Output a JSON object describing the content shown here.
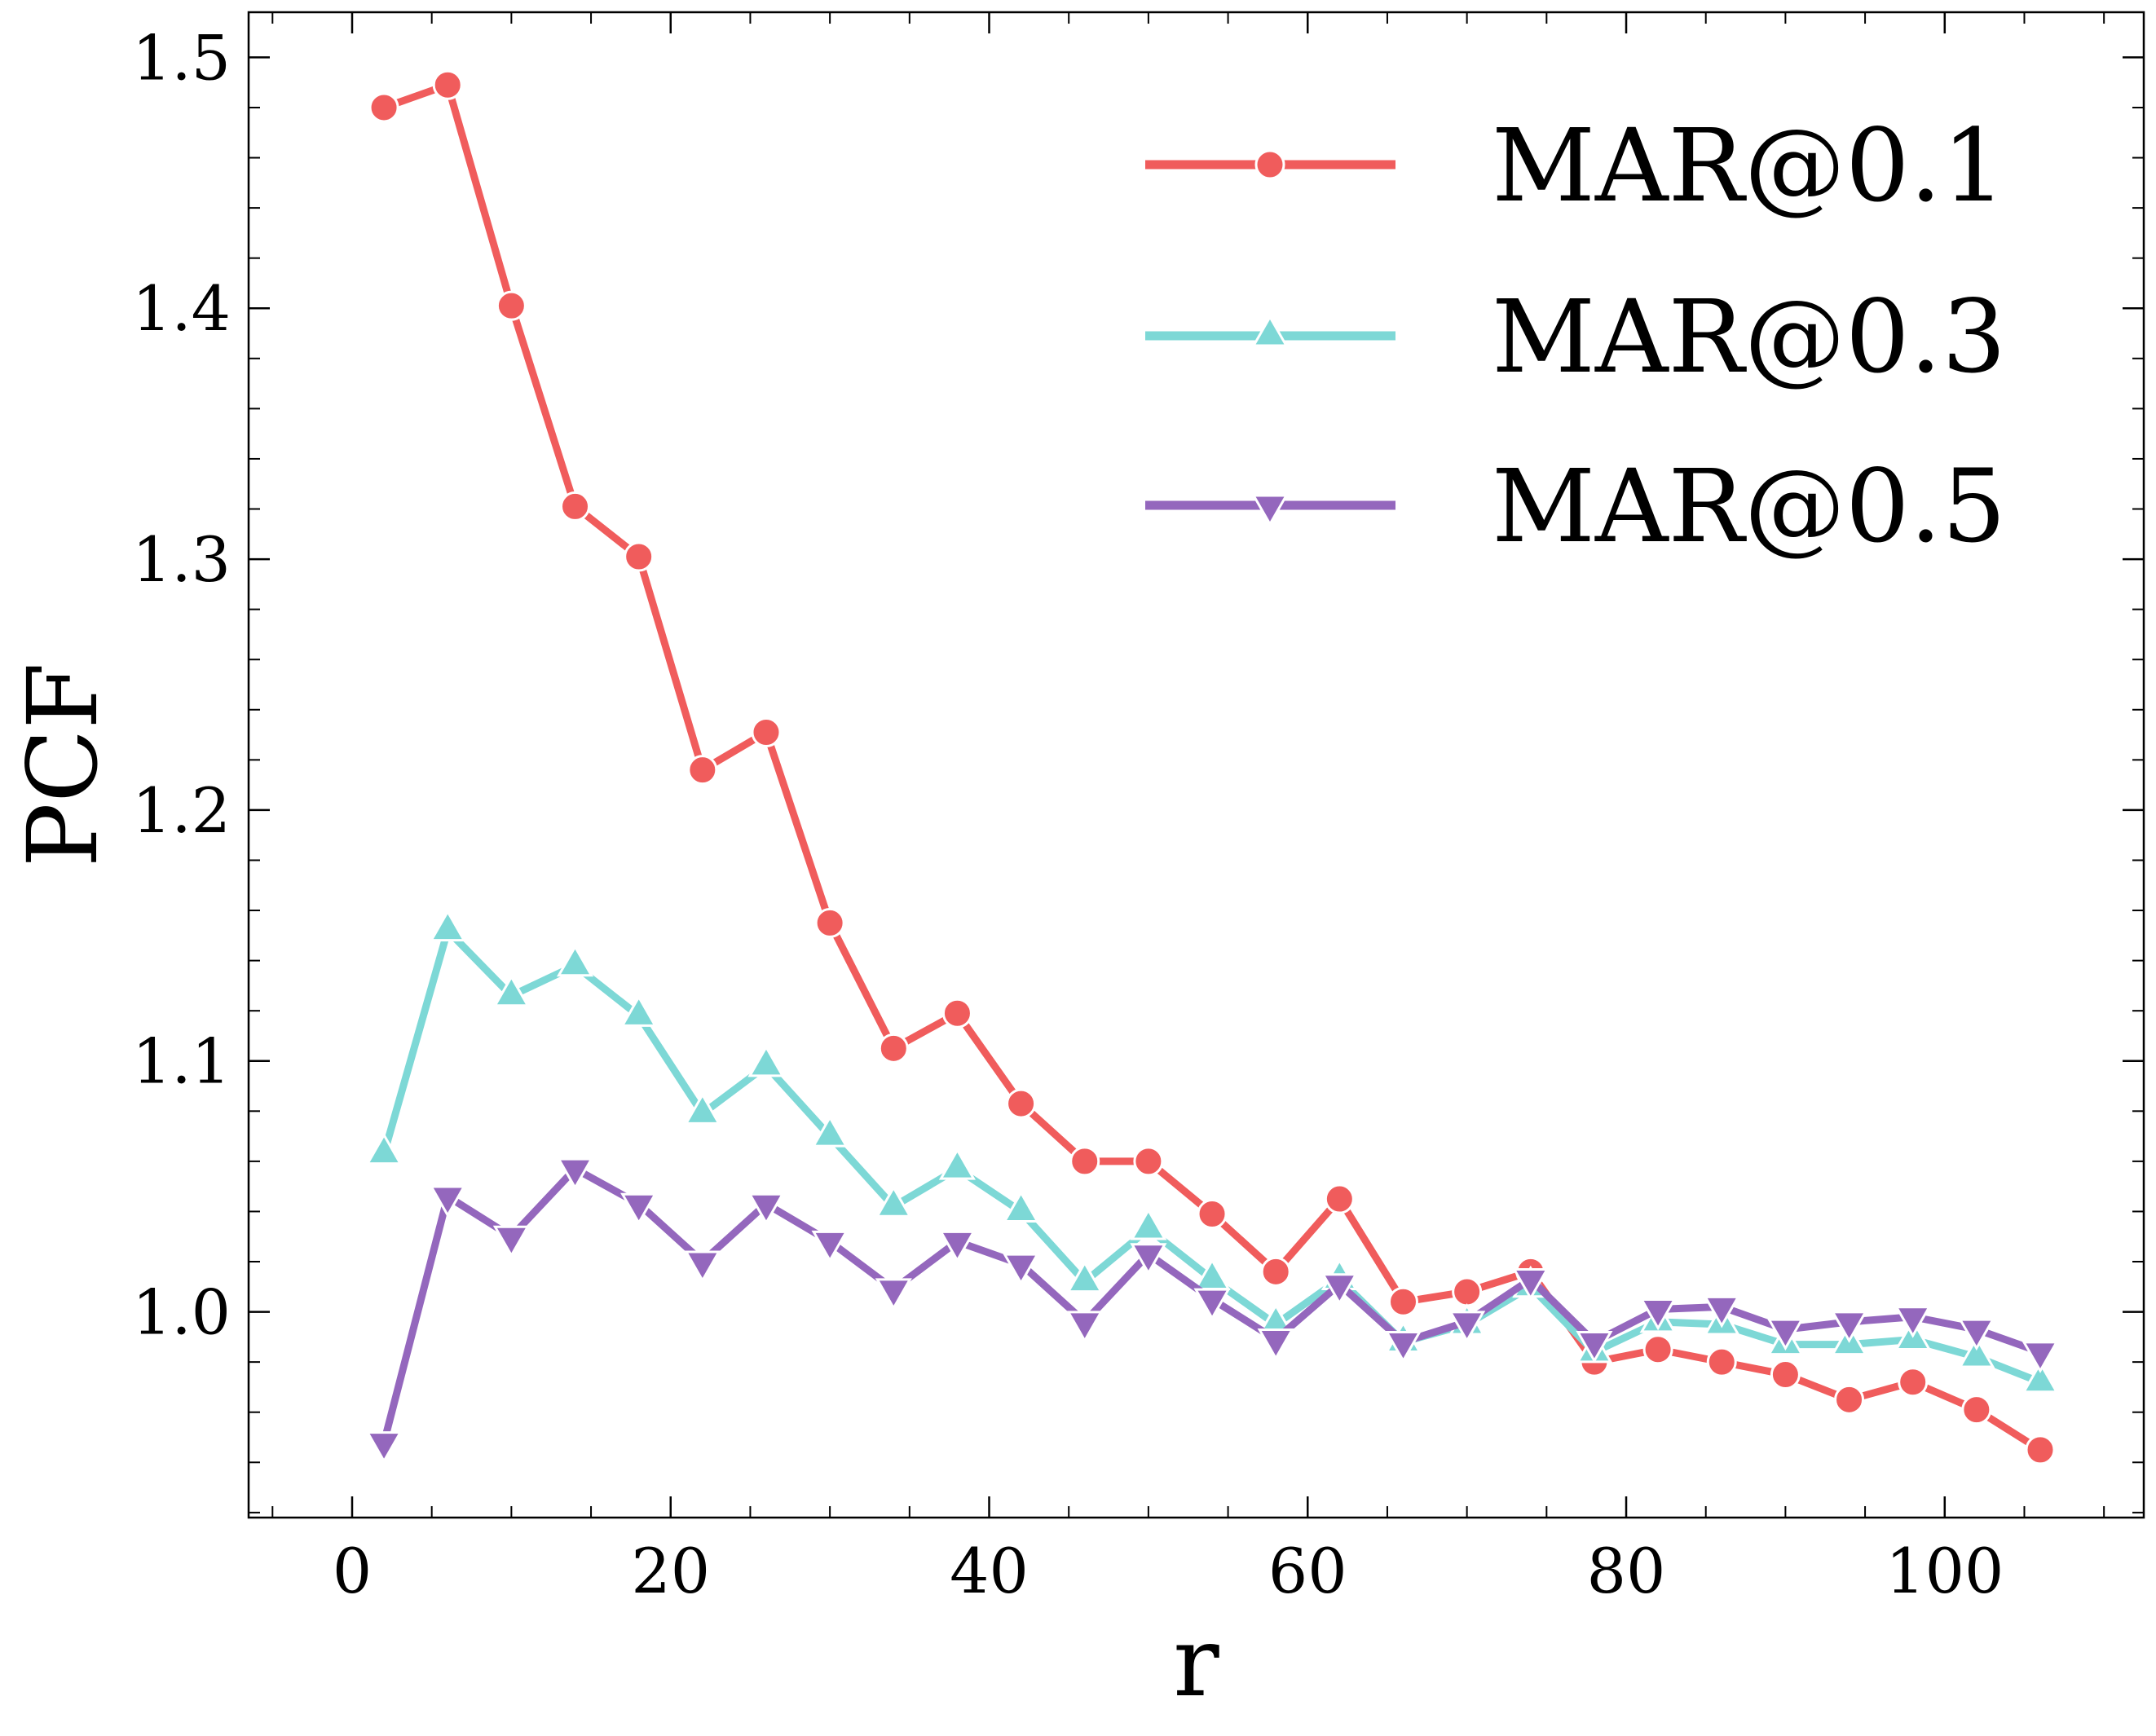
{
  "chart_data": {
    "type": "line",
    "title": "",
    "xlabel": "r",
    "ylabel": "PCF",
    "xlim": [
      -6.5,
      112.5
    ],
    "ylim": [
      0.918,
      1.518
    ],
    "x_ticks": [
      0,
      20,
      40,
      60,
      80,
      100
    ],
    "x_tick_labels": [
      "0",
      "20",
      "40",
      "60",
      "80",
      "100"
    ],
    "y_ticks": [
      1.0,
      1.1,
      1.2,
      1.3,
      1.4,
      1.5
    ],
    "y_tick_labels": [
      "1.0",
      "1.1",
      "1.2",
      "1.3",
      "1.4",
      "1.5"
    ],
    "grid": false,
    "legend_position": "top-right",
    "x": [
      2,
      6,
      10,
      14,
      18,
      22,
      26,
      30,
      34,
      38,
      42,
      46,
      50,
      54,
      58,
      62,
      66,
      70,
      74,
      78,
      82,
      86,
      90,
      94,
      98,
      102,
      106
    ],
    "series": [
      {
        "name": "MAR@0.1",
        "color": "#f05c5c",
        "marker": "circle",
        "values": [
          1.48,
          1.489,
          1.401,
          1.321,
          1.301,
          1.216,
          1.231,
          1.155,
          1.105,
          1.119,
          1.083,
          1.06,
          1.06,
          1.039,
          1.016,
          1.045,
          1.004,
          1.008,
          1.016,
          0.98,
          0.985,
          0.98,
          0.975,
          0.965,
          0.972,
          0.961,
          0.945
        ]
      },
      {
        "name": "MAR@0.3",
        "color": "#7dd8d6",
        "marker": "triangle-up",
        "values": [
          1.063,
          1.152,
          1.126,
          1.138,
          1.118,
          1.079,
          1.098,
          1.07,
          1.042,
          1.057,
          1.04,
          1.012,
          1.033,
          1.013,
          0.995,
          1.013,
          0.988,
          0.995,
          1.01,
          0.984,
          0.996,
          0.995,
          0.987,
          0.987,
          0.989,
          0.982,
          0.972
        ]
      },
      {
        "name": "MAR@0.5",
        "color": "#9467bd",
        "marker": "triangle-down",
        "values": [
          0.948,
          1.046,
          1.03,
          1.057,
          1.043,
          1.02,
          1.043,
          1.028,
          1.009,
          1.028,
          1.019,
          0.996,
          1.023,
          1.005,
          0.989,
          1.011,
          0.988,
          0.996,
          1.013,
          0.988,
          1.001,
          1.002,
          0.993,
          0.996,
          0.998,
          0.993,
          0.984
        ]
      }
    ]
  }
}
